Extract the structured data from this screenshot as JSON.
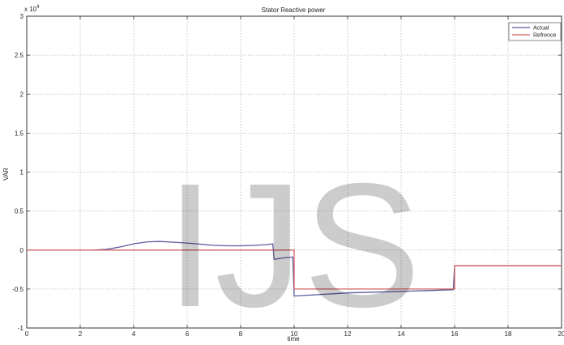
{
  "chart_data": {
    "type": "line",
    "title": "Stator Reactive power",
    "xlabel": "time",
    "ylabel": "VAR",
    "y_exponent_label": "x 10",
    "y_exponent_power": "4",
    "xlim": [
      0,
      20
    ],
    "ylim": [
      -1,
      3
    ],
    "x_ticks": [
      0,
      2,
      4,
      6,
      8,
      10,
      12,
      14,
      16,
      18,
      20
    ],
    "y_ticks": [
      -1,
      -0.5,
      0,
      0.5,
      1,
      1.5,
      2,
      2.5,
      3
    ],
    "x_tick_labels": [
      "0",
      "2",
      "4",
      "6",
      "8",
      "10",
      "12",
      "14",
      "16",
      "18",
      "20"
    ],
    "y_tick_labels": [
      "-1",
      "-0.5",
      "0",
      "0.5",
      "1",
      "1.5",
      "2",
      "2.5",
      "3"
    ],
    "grid": true,
    "legend_position": "top-right",
    "series": [
      {
        "name": "Actual",
        "color": "#5a5aa0",
        "points": [
          [
            2.5,
            0
          ],
          [
            3.0,
            0.01
          ],
          [
            3.5,
            0.04
          ],
          [
            4.0,
            0.08
          ],
          [
            4.5,
            0.105
          ],
          [
            5.0,
            0.11
          ],
          [
            5.5,
            0.1
          ],
          [
            6.0,
            0.09
          ],
          [
            6.5,
            0.075
          ],
          [
            7.0,
            0.06
          ],
          [
            7.5,
            0.055
          ],
          [
            8.0,
            0.055
          ],
          [
            8.5,
            0.06
          ],
          [
            9.0,
            0.07
          ],
          [
            9.2,
            0.08
          ],
          [
            9.25,
            -0.12
          ],
          [
            9.6,
            -0.1
          ],
          [
            9.95,
            -0.09
          ],
          [
            10.0,
            -0.59
          ],
          [
            11.0,
            -0.57
          ],
          [
            12.0,
            -0.55
          ],
          [
            13.0,
            -0.54
          ],
          [
            14.0,
            -0.53
          ],
          [
            15.0,
            -0.52
          ],
          [
            15.95,
            -0.51
          ],
          [
            16.0,
            -0.2
          ],
          [
            18.0,
            -0.2
          ],
          [
            20.0,
            -0.2
          ]
        ]
      },
      {
        "name": "Reference",
        "color": "#d06060",
        "points": [
          [
            0,
            0
          ],
          [
            10.0,
            0
          ],
          [
            10.0,
            -0.5
          ],
          [
            16.0,
            -0.5
          ],
          [
            16.0,
            -0.2
          ],
          [
            20.0,
            -0.2
          ]
        ]
      }
    ],
    "legend_labels": [
      "Actual",
      "Refrence"
    ]
  },
  "watermark": {
    "text": "IJS"
  }
}
